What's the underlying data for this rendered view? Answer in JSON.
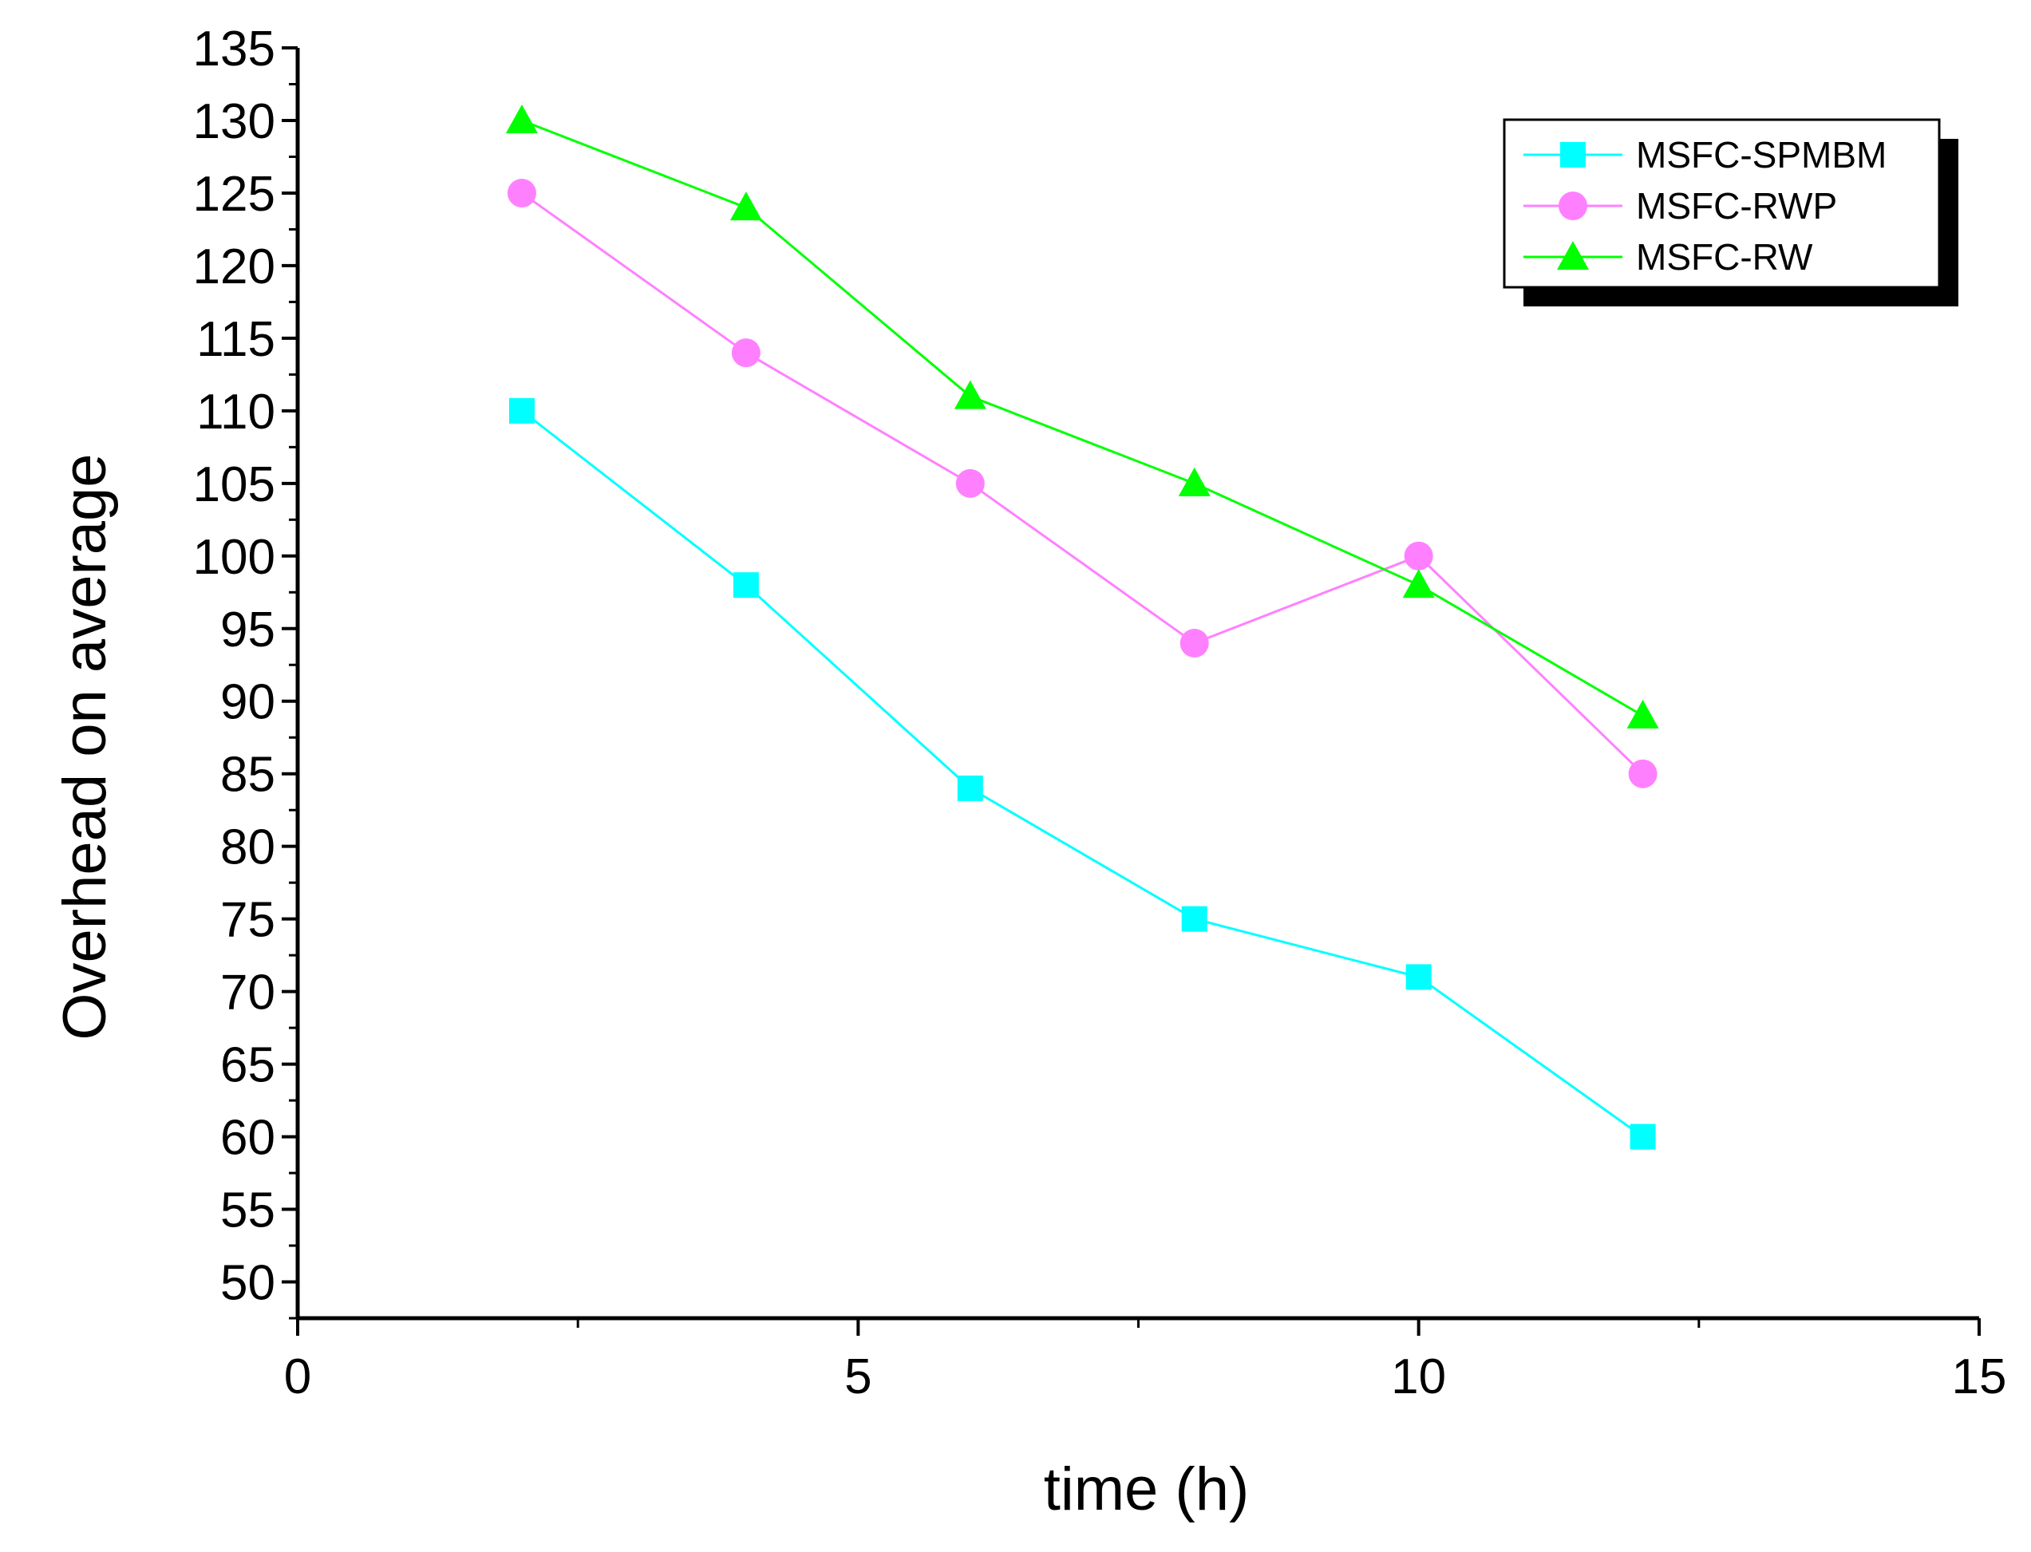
{
  "chart_data": {
    "type": "line",
    "title": "",
    "xlabel": "time (h)",
    "ylabel": "Overhead on average",
    "xlim": [
      0,
      15
    ],
    "ylim": [
      47.5,
      135
    ],
    "x_ticks": [
      0,
      5,
      10,
      15
    ],
    "x_tick_labels": [
      "0",
      "5",
      "10",
      "15"
    ],
    "y_ticks": [
      50,
      55,
      60,
      65,
      70,
      75,
      80,
      85,
      90,
      95,
      100,
      105,
      110,
      115,
      120,
      125,
      130,
      135
    ],
    "y_tick_labels": [
      "50",
      "55",
      "60",
      "65",
      "70",
      "75",
      "80",
      "85",
      "90",
      "95",
      "100",
      "105",
      "110",
      "115",
      "120",
      "125",
      "130",
      "135"
    ],
    "grid": false,
    "legend_position": "top-right",
    "x": [
      2,
      4,
      6,
      8,
      10,
      12
    ],
    "series": [
      {
        "name": "MSFC-SPMBM",
        "marker": "square",
        "color": "#00FFFF",
        "values": [
          110,
          98,
          84,
          75,
          71,
          60
        ]
      },
      {
        "name": "MSFC-RWP",
        "marker": "circle",
        "color": "#FF80FF",
        "values": [
          125,
          114,
          105,
          94,
          100,
          85
        ]
      },
      {
        "name": "MSFC-RW",
        "marker": "triangle",
        "color": "#00FF00",
        "values": [
          130,
          124,
          111,
          105,
          98,
          89
        ]
      }
    ]
  }
}
